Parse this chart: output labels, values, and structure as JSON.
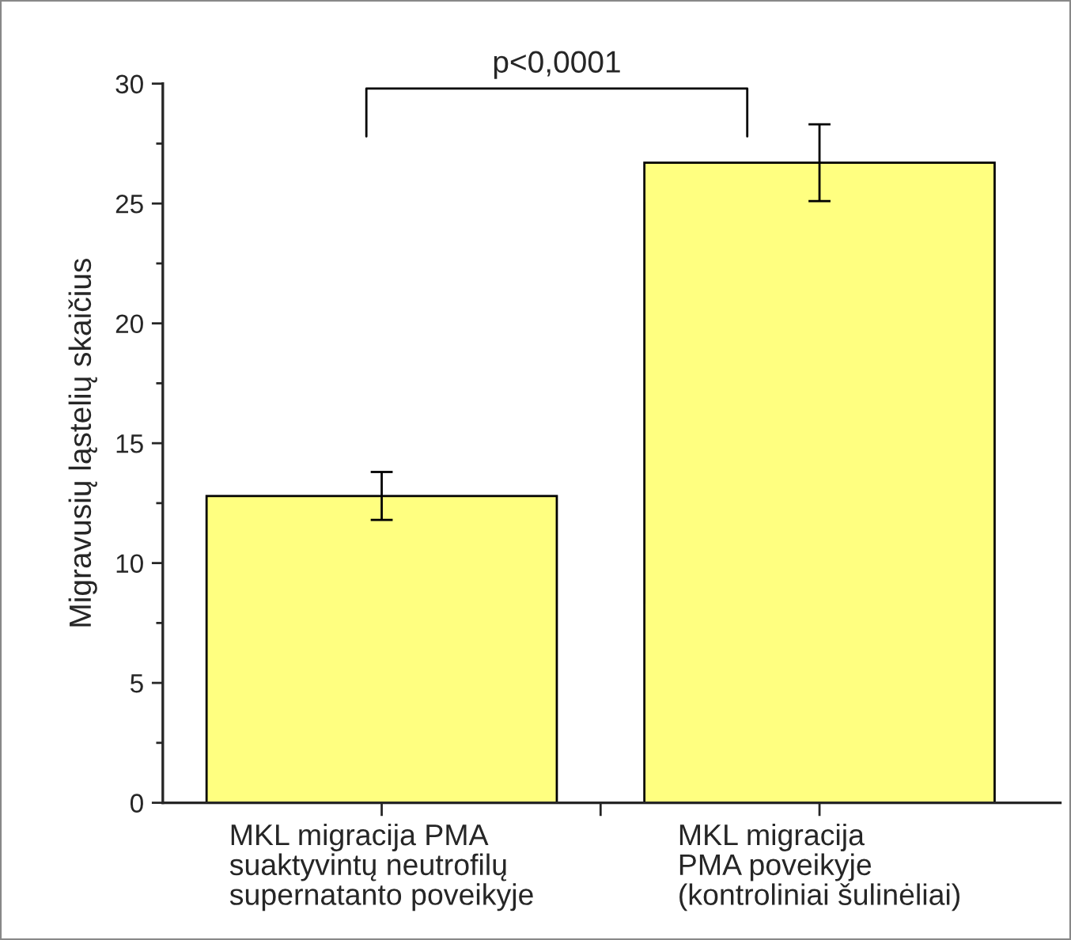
{
  "chart_data": {
    "type": "bar",
    "ylabel": "Migravusių ląstelių skaičius",
    "categories": [
      "MKL migracija PMA\nsuaktyvintų neutrofilų\nsupernatanto poveikyje",
      "MKL migracija\nPMA poveikyje\n(kontroliniai šulinėliai)"
    ],
    "values": [
      12.8,
      26.7
    ],
    "errors": [
      1.0,
      1.6
    ],
    "color": "#ffff80",
    "ylim": [
      0,
      30
    ],
    "yticks": [
      0,
      5,
      10,
      15,
      20,
      25,
      30
    ],
    "annotations": [
      "p<0,0001"
    ],
    "grid": false
  }
}
